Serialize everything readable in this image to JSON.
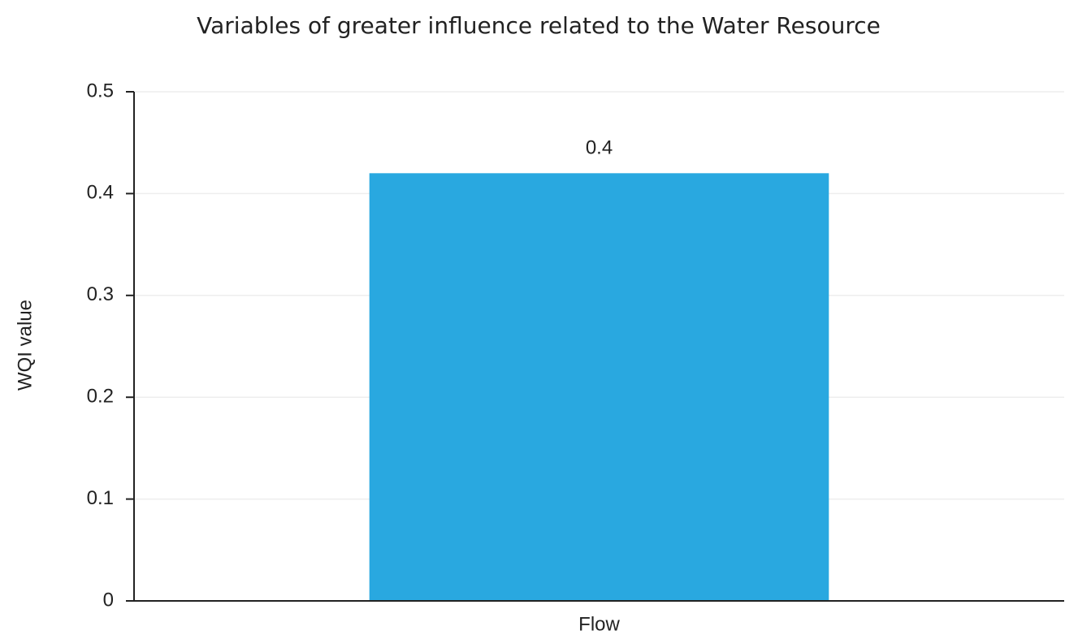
{
  "chart_data": {
    "type": "bar",
    "title": "Variables of greater influence related to the Water Resource",
    "y_label": "WQI value",
    "categories": [
      "Flow"
    ],
    "values": [
      0.42
    ],
    "value_labels": [
      "0.4"
    ],
    "color": "#29a8e0",
    "ylim": [
      0,
      0.5
    ],
    "yticks": [
      0,
      0.1,
      0.2,
      0.3,
      0.4,
      0.5
    ],
    "grid": true
  }
}
